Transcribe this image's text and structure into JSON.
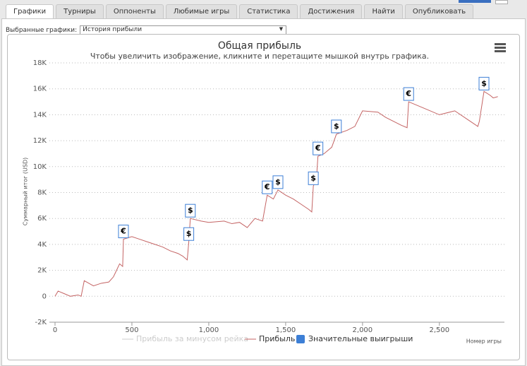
{
  "tabs": [
    "Графики",
    "Турниры",
    "Оппоненты",
    "Любимые игры",
    "Статистика",
    "Достижения",
    "Найти",
    "Опубликовать"
  ],
  "filter": {
    "label": "Выбранные графики:",
    "value": "История прибыли"
  },
  "chart_data": {
    "type": "line",
    "title": "Общая прибыль",
    "subtitle": "Чтобы увеличить изображение, кликните и перетащите мышкой внутрь графика.",
    "y_label": "Суммарный итог (USD)",
    "x_label": "Номер игры",
    "xlim": [
      0,
      2900
    ],
    "xticks": [
      0,
      500,
      {
        "value": 1000,
        "label": "1,000"
      },
      {
        "value": 1500,
        "label": "1,500"
      },
      {
        "value": 2000,
        "label": "2,000"
      },
      {
        "value": 2500,
        "label": "2,500"
      }
    ],
    "ylim": [
      -2000,
      18000
    ],
    "yticks": [
      {
        "value": -2000,
        "label": "-2K"
      },
      0,
      {
        "value": 2000,
        "label": "2K"
      },
      {
        "value": 4000,
        "label": "4K"
      },
      {
        "value": 6000,
        "label": "6K"
      },
      {
        "value": 8000,
        "label": "8K"
      },
      {
        "value": 10000,
        "label": "10K"
      },
      {
        "value": 12000,
        "label": "12K"
      },
      {
        "value": 14000,
        "label": "14K"
      },
      {
        "value": 16000,
        "label": "16K"
      },
      {
        "value": 18000,
        "label": "18K"
      }
    ],
    "grid": true,
    "hidden_series": {
      "name": "Прибыль за минусом рейка",
      "color": "#cccccc"
    },
    "series": [
      {
        "name": "Прибыль",
        "color": "#c46464",
        "x": [
          0,
          20,
          60,
          100,
          150,
          170,
          190,
          250,
          300,
          350,
          380,
          400,
          420,
          440,
          445,
          500,
          550,
          600,
          650,
          700,
          750,
          800,
          830,
          860,
          870,
          880,
          950,
          1000,
          1100,
          1150,
          1200,
          1250,
          1300,
          1350,
          1380,
          1420,
          1450,
          1500,
          1550,
          1600,
          1650,
          1670,
          1680,
          1700,
          1710,
          1750,
          1800,
          1830,
          1900,
          1950,
          2000,
          2100,
          2150,
          2200,
          2250,
          2290,
          2300,
          2400,
          2500,
          2600,
          2700,
          2750,
          2760,
          2790,
          2830,
          2850,
          2880
        ],
        "values": [
          0,
          400,
          200,
          0,
          100,
          0,
          1200,
          800,
          1000,
          1100,
          1500,
          2000,
          2500,
          2300,
          4400,
          4600,
          4400,
          4200,
          4000,
          3800,
          3500,
          3300,
          3100,
          2800,
          4200,
          6000,
          5800,
          5700,
          5800,
          5600,
          5700,
          5300,
          6000,
          5800,
          7800,
          7500,
          8200,
          7800,
          7500,
          7100,
          6700,
          6500,
          8500,
          9000,
          10800,
          11000,
          11500,
          12500,
          12800,
          13100,
          14300,
          14200,
          13800,
          13500,
          13200,
          13000,
          15000,
          14500,
          14000,
          14300,
          13500,
          13100,
          13500,
          15800,
          15500,
          15300,
          15400
        ]
      }
    ],
    "flags": {
      "name": "Значительные выигрыши",
      "color": "#3d7fd6",
      "points": [
        {
          "x": 445,
          "y": 4400,
          "label": "€"
        },
        {
          "x": 870,
          "y": 4200,
          "label": "$"
        },
        {
          "x": 880,
          "y": 6000,
          "label": "$"
        },
        {
          "x": 1380,
          "y": 7800,
          "label": "€"
        },
        {
          "x": 1450,
          "y": 8200,
          "label": "$"
        },
        {
          "x": 1680,
          "y": 8500,
          "label": "$"
        },
        {
          "x": 1710,
          "y": 10800,
          "label": "€"
        },
        {
          "x": 1830,
          "y": 12500,
          "label": "$"
        },
        {
          "x": 2300,
          "y": 15000,
          "label": "€"
        },
        {
          "x": 2790,
          "y": 15800,
          "label": "$"
        }
      ]
    }
  }
}
